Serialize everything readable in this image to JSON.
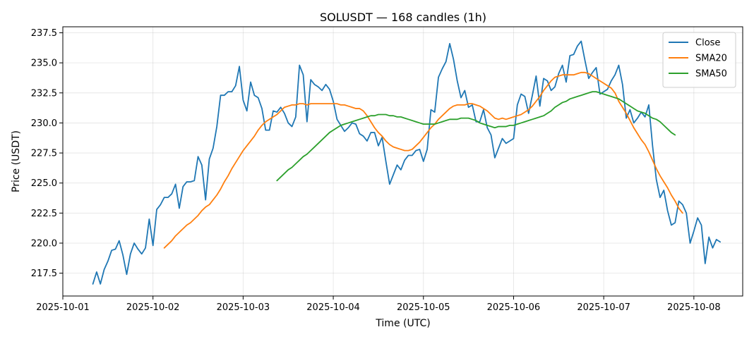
{
  "chart_data": {
    "type": "line",
    "title": "SOLUSDT — 168 candles (1h)",
    "xlabel": "Time (UTC)",
    "ylabel": "Price (USDT)",
    "x_ticks": [
      "2025-10-01",
      "2025-10-02",
      "2025-10-03",
      "2025-10-04",
      "2025-10-05",
      "2025-10-06",
      "2025-10-07",
      "2025-10-08"
    ],
    "y_ticks": [
      217.5,
      220.0,
      222.5,
      225.0,
      227.5,
      230.0,
      232.5,
      235.0,
      237.5
    ],
    "xlim": [
      "2025-10-01 00:00",
      "2025-10-08 13:00"
    ],
    "ylim": [
      215.6,
      238.0
    ],
    "grid": true,
    "legend_position": "top-right",
    "series": [
      {
        "name": "Close",
        "color": "#1f77b4",
        "start": "2025-10-01 08:00",
        "interval_hours": 1,
        "values": [
          216.6,
          217.6,
          216.6,
          217.8,
          218.5,
          219.4,
          219.5,
          220.2,
          219.0,
          217.4,
          219.1,
          220.0,
          219.5,
          219.1,
          219.6,
          222.0,
          219.8,
          222.8,
          223.2,
          223.8,
          223.8,
          224.1,
          224.9,
          222.9,
          224.7,
          225.1,
          225.1,
          225.2,
          227.2,
          226.5,
          223.6,
          227.0,
          227.9,
          229.7,
          232.3,
          232.3,
          232.6,
          232.6,
          233.1,
          234.7,
          231.9,
          231.0,
          233.4,
          232.3,
          232.1,
          231.2,
          229.4,
          229.4,
          231.0,
          230.9,
          231.3,
          230.8,
          230.0,
          229.7,
          230.5,
          234.8,
          234.0,
          230.1,
          233.6,
          233.2,
          233.0,
          232.7,
          233.2,
          232.8,
          231.8,
          230.3,
          229.8,
          229.3,
          229.6,
          230.0,
          229.9,
          229.1,
          228.9,
          228.5,
          229.2,
          229.2,
          228.1,
          228.8,
          226.8,
          224.9,
          225.7,
          226.5,
          226.1,
          226.9,
          227.3,
          227.3,
          227.7,
          227.8,
          226.8,
          227.8,
          231.1,
          230.9,
          233.8,
          234.5,
          235.1,
          236.6,
          235.3,
          233.5,
          232.1,
          232.7,
          231.3,
          231.5,
          230.1,
          230.1,
          231.1,
          229.6,
          229.0,
          227.1,
          227.9,
          228.7,
          228.3,
          228.5,
          228.7,
          231.5,
          232.4,
          232.2,
          230.8,
          232.3,
          233.9,
          231.4,
          233.7,
          233.5,
          232.7,
          233.0,
          234.1,
          234.8,
          233.4,
          235.6,
          235.7,
          236.4,
          236.8,
          235.2,
          233.7,
          234.2,
          234.6,
          232.4,
          232.6,
          232.8,
          233.5,
          234.0,
          234.8,
          233.2,
          230.4,
          231.1,
          230.0,
          230.4,
          230.9,
          230.5,
          231.5,
          228.1,
          225.3,
          223.8,
          224.4,
          222.7,
          221.5,
          221.7,
          223.5,
          223.2,
          222.5,
          220.0,
          221.0,
          222.1,
          221.5,
          218.3,
          220.5,
          219.6,
          220.3,
          220.1
        ]
      },
      {
        "name": "SMA20",
        "color": "#ff7f0e",
        "start": "2025-10-02 03:00",
        "interval_hours": 1,
        "values": [
          219.6,
          219.9,
          220.2,
          220.6,
          220.9,
          221.2,
          221.5,
          221.7,
          222.0,
          222.3,
          222.7,
          223.0,
          223.2,
          223.6,
          224.0,
          224.5,
          225.1,
          225.6,
          226.2,
          226.7,
          227.2,
          227.7,
          228.1,
          228.5,
          228.9,
          229.4,
          229.8,
          230.1,
          230.3,
          230.5,
          230.7,
          231.0,
          231.3,
          231.4,
          231.5,
          231.5,
          231.6,
          231.6,
          231.5,
          231.6,
          231.6,
          231.6,
          231.6,
          231.6,
          231.6,
          231.6,
          231.6,
          231.5,
          231.5,
          231.4,
          231.3,
          231.2,
          231.2,
          231.0,
          230.6,
          230.1,
          229.6,
          229.2,
          228.9,
          228.5,
          228.2,
          228.0,
          227.9,
          227.8,
          227.7,
          227.7,
          227.8,
          228.1,
          228.4,
          228.8,
          229.2,
          229.6,
          229.9,
          230.3,
          230.6,
          230.9,
          231.2,
          231.4,
          231.5,
          231.5,
          231.5,
          231.6,
          231.6,
          231.5,
          231.4,
          231.2,
          231.0,
          230.7,
          230.4,
          230.3,
          230.4,
          230.3,
          230.4,
          230.5,
          230.6,
          230.7,
          230.9,
          231.1,
          231.4,
          231.8,
          232.2,
          232.7,
          233.1,
          233.5,
          233.8,
          233.9,
          234.0,
          234.0,
          234.0,
          234.0,
          234.1,
          234.2,
          234.2,
          234.1,
          233.9,
          233.7,
          233.5,
          233.3,
          233.1,
          232.9,
          232.5,
          231.8,
          231.3,
          230.8,
          230.2,
          229.6,
          229.1,
          228.6,
          228.2,
          227.6,
          226.9,
          226.2,
          225.6,
          225.1,
          224.6,
          224.0,
          223.5,
          222.9,
          222.5
        ]
      },
      {
        "name": "SMA50",
        "color": "#2ca02c",
        "start": "2025-10-03 09:00",
        "interval_hours": 1,
        "values": [
          225.2,
          225.5,
          225.8,
          226.1,
          226.3,
          226.6,
          226.9,
          227.2,
          227.4,
          227.7,
          228.0,
          228.3,
          228.6,
          228.9,
          229.2,
          229.4,
          229.6,
          229.8,
          229.9,
          230.0,
          230.1,
          230.2,
          230.3,
          230.4,
          230.5,
          230.6,
          230.6,
          230.7,
          230.7,
          230.7,
          230.6,
          230.6,
          230.5,
          230.5,
          230.4,
          230.3,
          230.2,
          230.1,
          230.0,
          229.9,
          229.9,
          229.9,
          229.9,
          230.0,
          230.1,
          230.2,
          230.3,
          230.3,
          230.3,
          230.4,
          230.4,
          230.4,
          230.3,
          230.2,
          230.0,
          229.9,
          229.8,
          229.7,
          229.6,
          229.7,
          229.7,
          229.7,
          229.8,
          229.8,
          229.9,
          230.0,
          230.1,
          230.2,
          230.3,
          230.4,
          230.5,
          230.6,
          230.8,
          231.0,
          231.3,
          231.5,
          231.7,
          231.8,
          232.0,
          232.1,
          232.2,
          232.3,
          232.4,
          232.5,
          232.6,
          232.6,
          232.5,
          232.4,
          232.3,
          232.2,
          232.1,
          232.0,
          231.8,
          231.6,
          231.4,
          231.2,
          231.0,
          230.9,
          230.8,
          230.6,
          230.4,
          230.3,
          230.1,
          229.8,
          229.5,
          229.2,
          229.0
        ]
      }
    ]
  }
}
